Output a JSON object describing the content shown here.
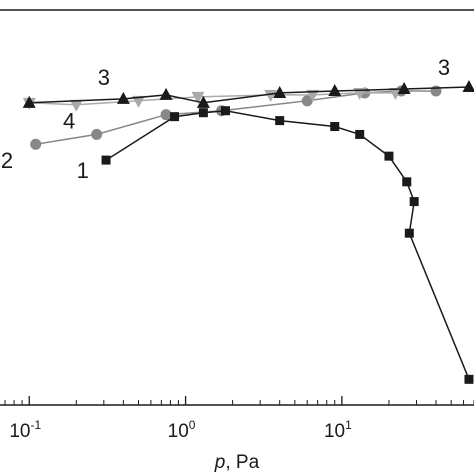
{
  "chart_data": {
    "type": "line",
    "x_scale": "log",
    "xlim": [
      0.065,
      70
    ],
    "ylim": [
      0,
      1
    ],
    "grid": false,
    "xlabel": {
      "var": "p",
      "rest": ", Pa"
    },
    "x_ticks": [
      {
        "value": 0.1,
        "base": "10",
        "exp": "-1"
      },
      {
        "value": 1,
        "base": "10",
        "exp": "0"
      },
      {
        "value": 10,
        "base": "10",
        "exp": "1"
      }
    ],
    "series": [
      {
        "name": "1",
        "color": "#1a1a1a",
        "marker": "square",
        "marker_color": "#1a1a1a",
        "points": [
          {
            "x": 0.31,
            "y": 0.62
          },
          {
            "x": 0.85,
            "y": 0.73
          },
          {
            "x": 1.3,
            "y": 0.74
          },
          {
            "x": 1.8,
            "y": 0.745
          },
          {
            "x": 4.0,
            "y": 0.72
          },
          {
            "x": 9.0,
            "y": 0.705
          },
          {
            "x": 13.0,
            "y": 0.685
          },
          {
            "x": 20.0,
            "y": 0.63
          },
          {
            "x": 26.0,
            "y": 0.565
          },
          {
            "x": 29.0,
            "y": 0.515
          },
          {
            "x": 27.0,
            "y": 0.435
          },
          {
            "x": 65.0,
            "y": 0.065
          }
        ]
      },
      {
        "name": "2",
        "color": "#888888",
        "marker": "circle",
        "marker_color": "#888888",
        "points": [
          {
            "x": 0.11,
            "y": 0.66
          },
          {
            "x": 0.27,
            "y": 0.685
          },
          {
            "x": 0.75,
            "y": 0.735
          },
          {
            "x": 1.7,
            "y": 0.745
          },
          {
            "x": 6.0,
            "y": 0.77
          },
          {
            "x": 14.0,
            "y": 0.79
          },
          {
            "x": 24.0,
            "y": 0.795
          },
          {
            "x": 40.0,
            "y": 0.795
          }
        ]
      },
      {
        "name": "3",
        "color": "#1a1a1a",
        "marker": "triangle-up",
        "marker_color": "#1a1a1a",
        "points": [
          {
            "x": 0.1,
            "y": 0.765
          },
          {
            "x": 0.4,
            "y": 0.775
          },
          {
            "x": 0.75,
            "y": 0.785
          },
          {
            "x": 1.3,
            "y": 0.765
          },
          {
            "x": 4.0,
            "y": 0.79
          },
          {
            "x": 9.0,
            "y": 0.795
          },
          {
            "x": 25.0,
            "y": 0.8
          },
          {
            "x": 65.0,
            "y": 0.805
          }
        ]
      },
      {
        "name": "4",
        "color": "#aaaaaa",
        "marker": "triangle-down",
        "marker_color": "#aaaaaa",
        "points": [
          {
            "x": 0.1,
            "y": 0.765
          },
          {
            "x": 0.2,
            "y": 0.76
          },
          {
            "x": 0.5,
            "y": 0.77
          },
          {
            "x": 1.2,
            "y": 0.78
          },
          {
            "x": 3.5,
            "y": 0.785
          },
          {
            "x": 6.5,
            "y": 0.785
          },
          {
            "x": 13.0,
            "y": 0.79
          },
          {
            "x": 22.0,
            "y": 0.79
          }
        ]
      }
    ],
    "annotations": [
      {
        "text": "3",
        "series": "3",
        "x": 0.3,
        "y": 0.81
      },
      {
        "text": "3",
        "series": "3",
        "x": 45.0,
        "y": 0.835
      },
      {
        "text": "4",
        "series": "4",
        "x": 0.18,
        "y": 0.7
      },
      {
        "text": "2",
        "series": "2",
        "x": 0.072,
        "y": 0.6
      },
      {
        "text": "1",
        "series": "1",
        "x": 0.22,
        "y": 0.575
      }
    ]
  }
}
